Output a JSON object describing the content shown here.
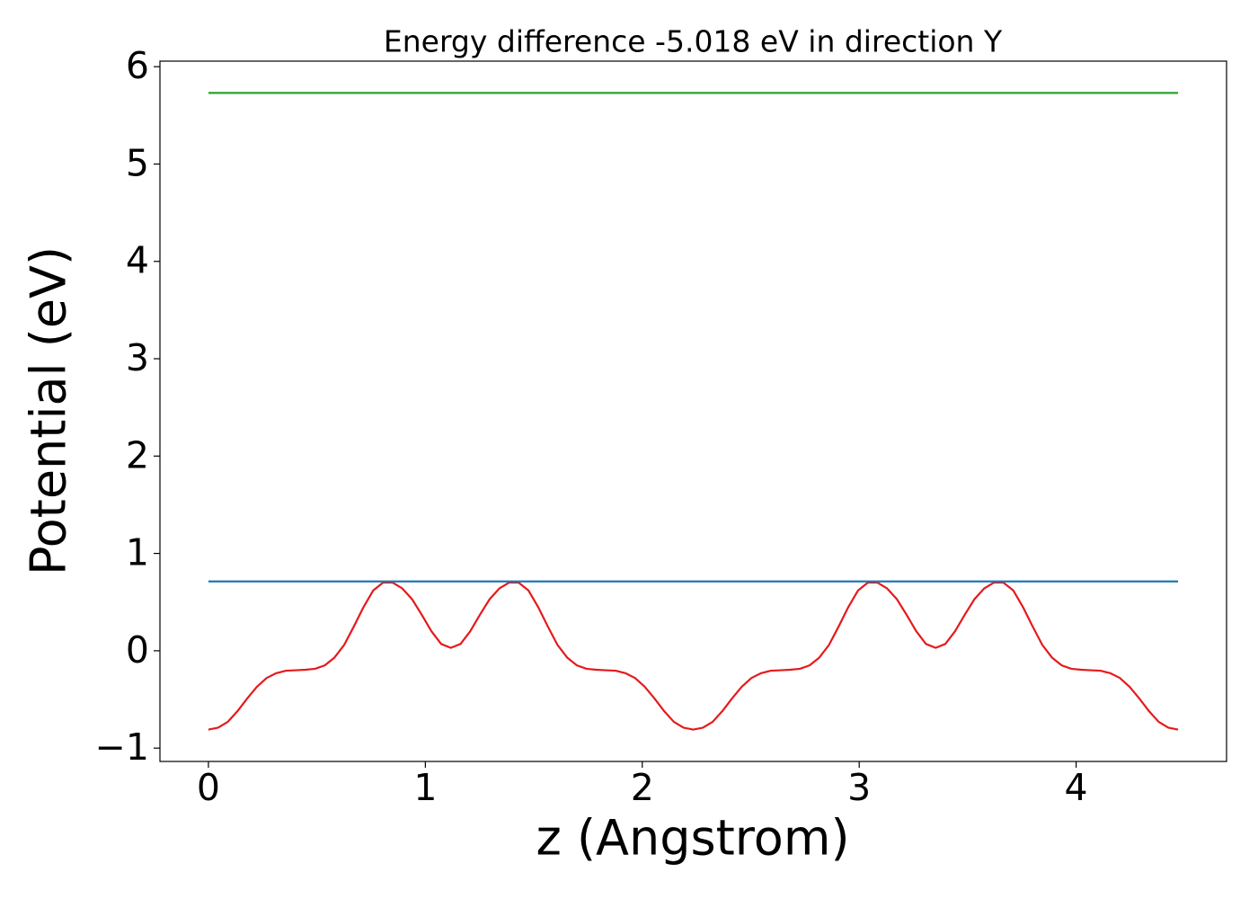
{
  "chart_data": {
    "type": "line",
    "title": "Energy difference -5.018 eV in direction Y",
    "x_label": "z (Angstrom)",
    "y_label": "Potential (eV)",
    "xlim": [
      -0.2235,
      4.6935
    ],
    "ylim": [
      -1.137,
      6.057
    ],
    "xticks": [
      0,
      1,
      2,
      3,
      4
    ],
    "yticks": [
      {
        "value": -1,
        "label": "−1"
      },
      0,
      1,
      2,
      3,
      4,
      5,
      6
    ],
    "grid": false,
    "series": [
      {
        "color": "#e41a1c",
        "x": [
          0,
          0.0447,
          0.0894,
          0.1341,
          0.1788,
          0.2235,
          0.2682,
          0.3129,
          0.3576,
          0.4023,
          0.447,
          0.4917,
          0.5364,
          0.5811,
          0.6258,
          0.6705,
          0.7152,
          0.7599,
          0.8046,
          0.8493,
          0.894,
          0.9387,
          0.9834,
          1.0281,
          1.0728,
          1.1175,
          1.1622,
          1.2069,
          1.2516,
          1.2963,
          1.341,
          1.3857,
          1.4304,
          1.4751,
          1.5198,
          1.5645,
          1.6092,
          1.6539,
          1.6986,
          1.7433,
          1.788,
          1.8327,
          1.8774,
          1.9221,
          1.9668,
          2.0115,
          2.0562,
          2.1009,
          2.1456,
          2.1903,
          2.235,
          2.2797,
          2.3244,
          2.3691,
          2.4138,
          2.4585,
          2.5032,
          2.5479,
          2.5926,
          2.6373,
          2.682,
          2.7267,
          2.7714,
          2.8161,
          2.8608,
          2.9055,
          2.9502,
          2.9949,
          3.0396,
          3.0843,
          3.129,
          3.1737,
          3.2184,
          3.2631,
          3.3078,
          3.3525,
          3.3972,
          3.4419,
          3.4866,
          3.5313,
          3.576,
          3.6207,
          3.6654,
          3.7101,
          3.7548,
          3.7995,
          3.8442,
          3.8889,
          3.9336,
          3.9783,
          4.023,
          4.0677,
          4.1124,
          4.1571,
          4.2018,
          4.2465,
          4.2912,
          4.3359,
          4.3806,
          4.4253,
          4.47
        ],
        "values": [
          -0.81,
          -0.79,
          -0.73,
          -0.62,
          -0.49,
          -0.37,
          -0.28,
          -0.23,
          -0.205,
          -0.2,
          -0.195,
          -0.185,
          -0.15,
          -0.07,
          0.06,
          0.25,
          0.45,
          0.62,
          0.7,
          0.7,
          0.64,
          0.53,
          0.37,
          0.2,
          0.07,
          0.03,
          0.07,
          0.2,
          0.37,
          0.53,
          0.64,
          0.7,
          0.7,
          0.62,
          0.45,
          0.25,
          0.06,
          -0.07,
          -0.15,
          -0.185,
          -0.195,
          -0.2,
          -0.205,
          -0.23,
          -0.28,
          -0.37,
          -0.49,
          -0.62,
          -0.73,
          -0.79,
          -0.81,
          -0.79,
          -0.73,
          -0.62,
          -0.49,
          -0.37,
          -0.28,
          -0.23,
          -0.205,
          -0.2,
          -0.195,
          -0.185,
          -0.15,
          -0.07,
          0.06,
          0.25,
          0.45,
          0.62,
          0.7,
          0.7,
          0.64,
          0.53,
          0.37,
          0.2,
          0.07,
          0.03,
          0.07,
          0.2,
          0.37,
          0.53,
          0.64,
          0.7,
          0.7,
          0.62,
          0.45,
          0.25,
          0.06,
          -0.07,
          -0.15,
          -0.185,
          -0.195,
          -0.2,
          -0.205,
          -0.23,
          -0.28,
          -0.37,
          -0.49,
          -0.62,
          -0.73,
          -0.79,
          -0.81
        ]
      },
      {
        "color": "#1f77b4",
        "x": [
          0,
          4.47
        ],
        "values": [
          0.712,
          0.712
        ]
      },
      {
        "color": "#2ca02c",
        "x": [
          0,
          4.47
        ],
        "values": [
          5.73,
          5.73
        ]
      }
    ]
  }
}
